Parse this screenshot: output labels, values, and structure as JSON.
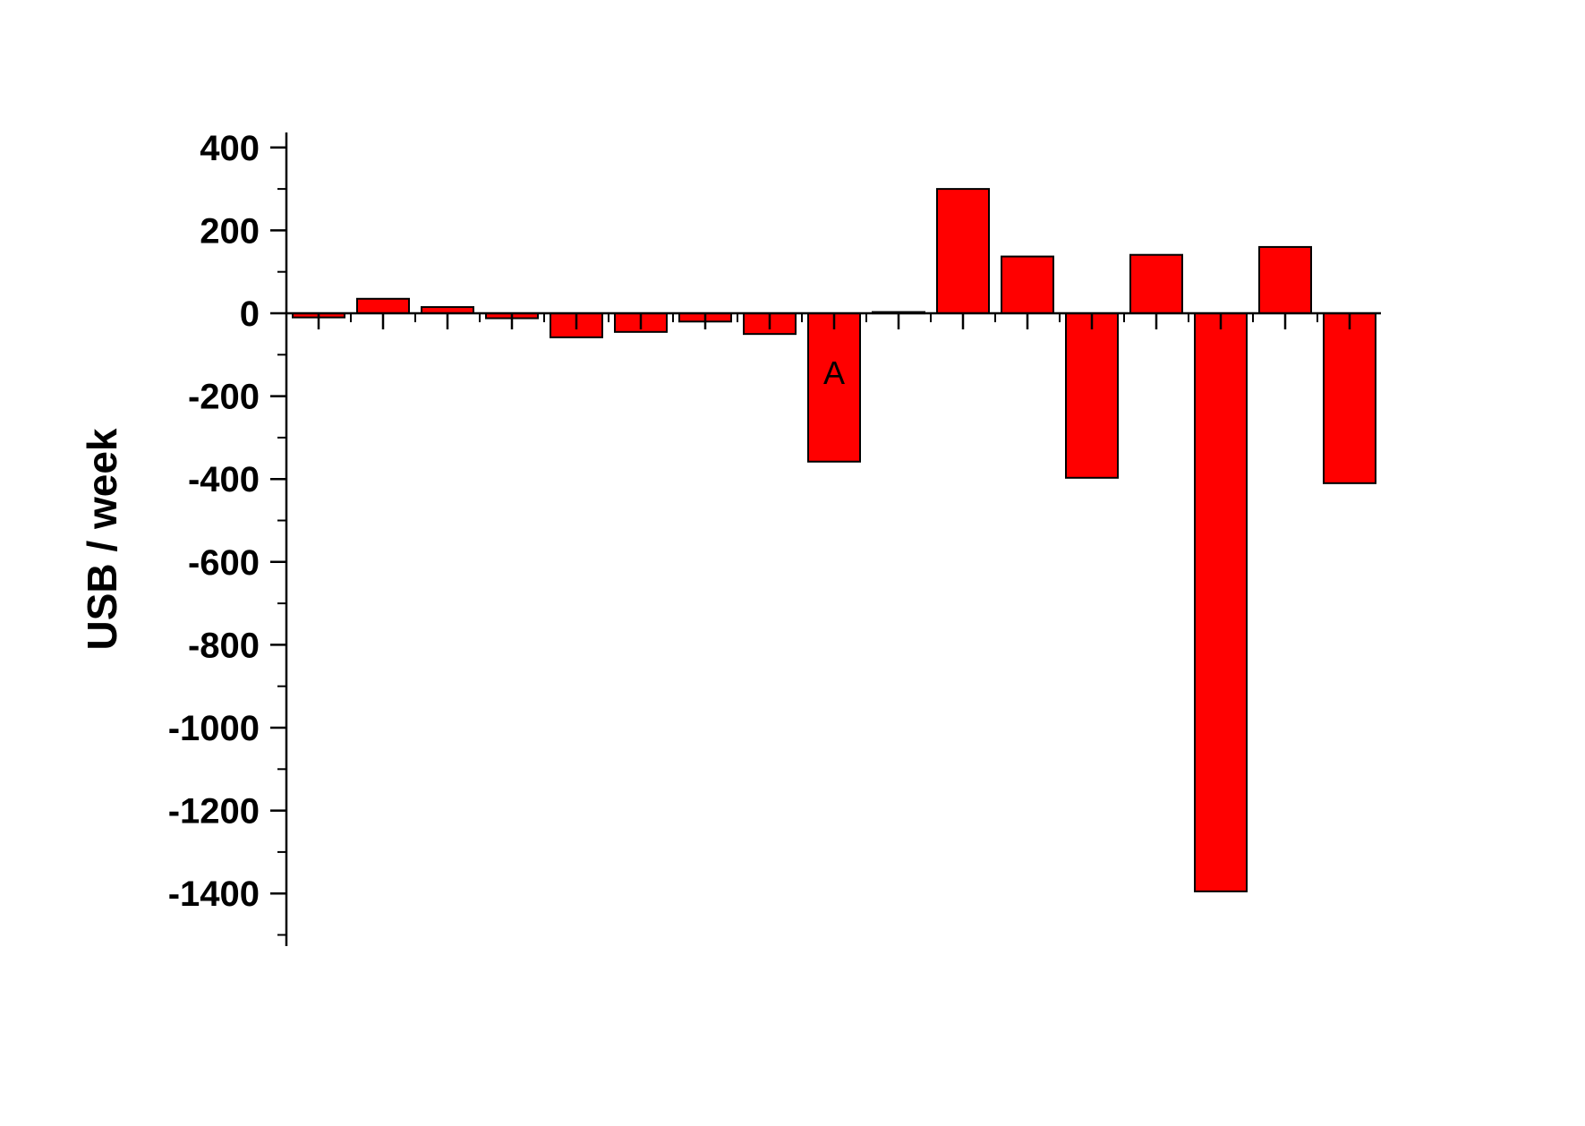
{
  "chart_data": {
    "type": "bar",
    "ylabel": "USB / week",
    "ylim": [
      -1520,
      440
    ],
    "yticks_major": [
      400,
      200,
      0,
      -200,
      -400,
      -600,
      -800,
      -1000,
      -1200,
      -1400
    ],
    "ytick_labels": [
      "400",
      "200",
      "0",
      "-200",
      "-400",
      "-600",
      "-800",
      "-1000",
      "-1200",
      "-1400"
    ],
    "yticks_minor": [
      300,
      100,
      -100,
      -300,
      -500,
      -700,
      -900,
      -1100,
      -1300,
      -1500
    ],
    "values": [
      -10,
      35,
      15,
      -12,
      -58,
      -45,
      -20,
      -50,
      -358,
      3,
      300,
      137,
      -397,
      141,
      -1395,
      160,
      -410
    ],
    "bar_color": "#ff0000",
    "bar_stroke": "#000000",
    "annotations": [
      {
        "text": "A",
        "bar_index": 8,
        "value": -140
      }
    ],
    "grid": false,
    "legend": "none"
  }
}
